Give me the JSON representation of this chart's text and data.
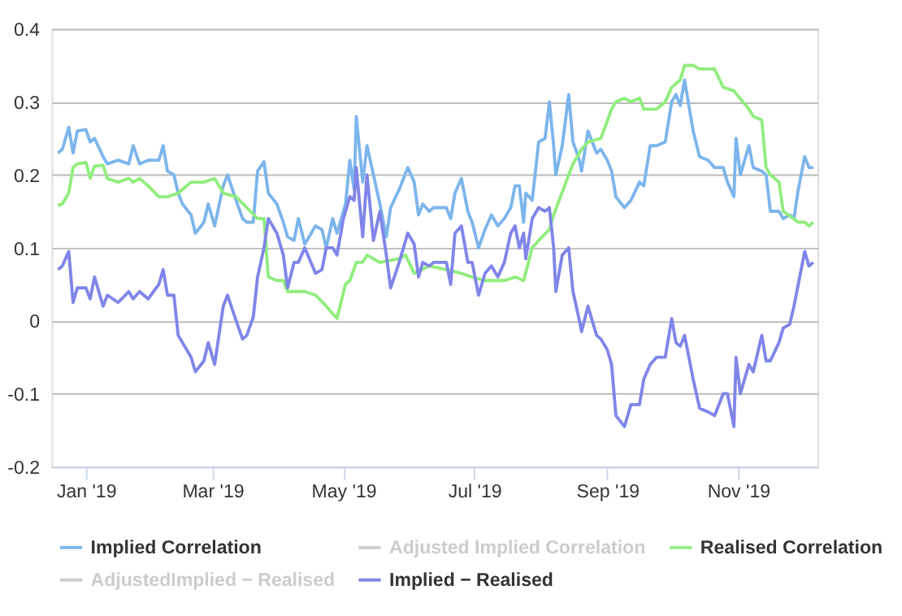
{
  "chart_data": {
    "type": "line",
    "xlim": [
      "2018-12-16",
      "2019-12-08"
    ],
    "xticks": [
      {
        "value": "2019-01-01",
        "label": "Jan '19"
      },
      {
        "value": "2019-03-01",
        "label": "Mar '19"
      },
      {
        "value": "2019-05-01",
        "label": "May '19"
      },
      {
        "value": "2019-07-01",
        "label": "Jul '19"
      },
      {
        "value": "2019-09-01",
        "label": "Sep '19"
      },
      {
        "value": "2019-11-01",
        "label": "Nov '19"
      }
    ],
    "ylim": [
      -0.2,
      0.4
    ],
    "yticks": [
      -0.2,
      -0.1,
      0,
      0.1,
      0.2,
      0.3,
      0.4
    ],
    "grid": "y",
    "legend": "bottom",
    "marker": "none",
    "line_style": "solid",
    "series": [
      {
        "name": "Implied Correlation",
        "color": "#7cb5ec",
        "x": [
          "2018-12-19",
          "2018-12-21",
          "2018-12-24",
          "2018-12-26",
          "2018-12-28",
          "2019-01-01",
          "2019-01-03",
          "2019-01-05",
          "2019-01-09",
          "2019-01-11",
          "2019-01-16",
          "2019-01-21",
          "2019-01-23",
          "2019-01-26",
          "2019-01-30",
          "2019-02-04",
          "2019-02-06",
          "2019-02-08",
          "2019-02-11",
          "2019-02-13",
          "2019-02-15",
          "2019-02-19",
          "2019-02-21",
          "2019-02-25",
          "2019-02-27",
          "2019-03-02",
          "2019-03-06",
          "2019-03-08",
          "2019-03-12",
          "2019-03-15",
          "2019-03-17",
          "2019-03-20",
          "2019-03-22",
          "2019-03-25",
          "2019-03-27",
          "2019-03-31",
          "2019-04-03",
          "2019-04-05",
          "2019-04-08",
          "2019-04-10",
          "2019-04-13",
          "2019-04-18",
          "2019-04-21",
          "2019-04-23",
          "2019-04-26",
          "2019-04-28",
          "2019-05-01",
          "2019-05-02",
          "2019-05-04",
          "2019-05-06",
          "2019-05-07",
          "2019-05-10",
          "2019-05-12",
          "2019-05-15",
          "2019-05-18",
          "2019-05-21",
          "2019-05-23",
          "2019-05-27",
          "2019-05-31",
          "2019-06-03",
          "2019-06-05",
          "2019-06-07",
          "2019-06-10",
          "2019-06-12",
          "2019-06-18",
          "2019-06-20",
          "2019-06-22",
          "2019-06-25",
          "2019-06-28",
          "2019-06-30",
          "2019-07-03",
          "2019-07-06",
          "2019-07-09",
          "2019-07-12",
          "2019-07-15",
          "2019-07-18",
          "2019-07-20",
          "2019-07-22",
          "2019-07-24",
          "2019-07-25",
          "2019-07-28",
          "2019-07-31",
          "2019-08-03",
          "2019-08-05",
          "2019-08-07",
          "2019-08-08",
          "2019-08-11",
          "2019-08-14",
          "2019-08-16",
          "2019-08-19",
          "2019-08-20",
          "2019-08-23",
          "2019-08-27",
          "2019-08-29",
          "2019-09-01",
          "2019-09-03",
          "2019-09-05",
          "2019-09-09",
          "2019-09-12",
          "2019-09-16",
          "2019-09-18",
          "2019-09-21",
          "2019-09-24",
          "2019-09-28",
          "2019-10-01",
          "2019-10-03",
          "2019-10-05",
          "2019-10-07",
          "2019-10-11",
          "2019-10-14",
          "2019-10-18",
          "2019-10-21",
          "2019-10-25",
          "2019-10-27",
          "2019-10-30",
          "2019-10-31",
          "2019-11-02",
          "2019-11-06",
          "2019-11-08",
          "2019-11-12",
          "2019-11-14",
          "2019-11-16",
          "2019-11-20",
          "2019-11-22",
          "2019-11-25",
          "2019-11-27",
          "2019-11-29",
          "2019-12-02",
          "2019-12-04",
          "2019-12-06"
        ],
        "values": [
          0.23,
          0.235,
          0.265,
          0.23,
          0.26,
          0.262,
          0.245,
          0.25,
          0.225,
          0.215,
          0.22,
          0.215,
          0.24,
          0.215,
          0.22,
          0.22,
          0.24,
          0.205,
          0.2,
          0.175,
          0.16,
          0.145,
          0.12,
          0.135,
          0.16,
          0.13,
          0.185,
          0.2,
          0.165,
          0.14,
          0.135,
          0.135,
          0.205,
          0.218,
          0.175,
          0.16,
          0.135,
          0.115,
          0.11,
          0.14,
          0.105,
          0.13,
          0.125,
          0.1,
          0.14,
          0.12,
          0.15,
          0.16,
          0.22,
          0.18,
          0.28,
          0.19,
          0.24,
          0.2,
          0.16,
          0.115,
          0.155,
          0.18,
          0.21,
          0.19,
          0.145,
          0.16,
          0.15,
          0.155,
          0.155,
          0.14,
          0.175,
          0.195,
          0.15,
          0.135,
          0.1,
          0.125,
          0.145,
          0.13,
          0.14,
          0.155,
          0.185,
          0.185,
          0.135,
          0.175,
          0.165,
          0.245,
          0.25,
          0.3,
          0.24,
          0.2,
          0.24,
          0.31,
          0.245,
          0.22,
          0.205,
          0.26,
          0.23,
          0.235,
          0.22,
          0.205,
          0.17,
          0.155,
          0.165,
          0.19,
          0.185,
          0.24,
          0.24,
          0.245,
          0.3,
          0.31,
          0.295,
          0.33,
          0.26,
          0.225,
          0.22,
          0.21,
          0.21,
          0.19,
          0.17,
          0.25,
          0.2,
          0.24,
          0.21,
          0.205,
          0.2,
          0.15,
          0.15,
          0.14,
          0.145,
          0.14,
          0.18,
          0.225,
          0.21,
          0.21
        ]
      },
      {
        "name": "Adjusted Implied Correlation",
        "color": "#cccccc"
      },
      {
        "name": "Realised Correlation",
        "color": "#90ed7d",
        "x": [
          "2018-12-19",
          "2018-12-21",
          "2018-12-24",
          "2018-12-26",
          "2018-12-28",
          "2019-01-01",
          "2019-01-03",
          "2019-01-05",
          "2019-01-09",
          "2019-01-11",
          "2019-01-16",
          "2019-01-21",
          "2019-01-23",
          "2019-01-26",
          "2019-01-30",
          "2019-02-04",
          "2019-02-08",
          "2019-02-13",
          "2019-02-19",
          "2019-02-25",
          "2019-03-02",
          "2019-03-06",
          "2019-03-12",
          "2019-03-17",
          "2019-03-22",
          "2019-03-25",
          "2019-03-27",
          "2019-03-31",
          "2019-04-03",
          "2019-04-05",
          "2019-04-13",
          "2019-04-18",
          "2019-04-23",
          "2019-04-28",
          "2019-05-02",
          "2019-05-04",
          "2019-05-07",
          "2019-05-10",
          "2019-05-12",
          "2019-05-18",
          "2019-05-27",
          "2019-05-30",
          "2019-06-03",
          "2019-06-10",
          "2019-06-18",
          "2019-06-25",
          "2019-06-30",
          "2019-07-06",
          "2019-07-15",
          "2019-07-20",
          "2019-07-24",
          "2019-07-28",
          "2019-07-31",
          "2019-08-05",
          "2019-08-07",
          "2019-08-14",
          "2019-08-16",
          "2019-08-20",
          "2019-08-23",
          "2019-08-29",
          "2019-09-03",
          "2019-09-05",
          "2019-09-09",
          "2019-09-12",
          "2019-09-16",
          "2019-09-18",
          "2019-09-24",
          "2019-09-28",
          "2019-10-01",
          "2019-10-05",
          "2019-10-07",
          "2019-10-11",
          "2019-10-14",
          "2019-10-21",
          "2019-10-25",
          "2019-10-30",
          "2019-11-06",
          "2019-11-08",
          "2019-11-12",
          "2019-11-14",
          "2019-11-16",
          "2019-11-20",
          "2019-11-22",
          "2019-11-29",
          "2019-12-02",
          "2019-12-04",
          "2019-12-06"
        ],
        "values": [
          0.158,
          0.16,
          0.175,
          0.21,
          0.215,
          0.217,
          0.195,
          0.212,
          0.213,
          0.195,
          0.19,
          0.195,
          0.19,
          0.195,
          0.185,
          0.17,
          0.17,
          0.175,
          0.19,
          0.19,
          0.195,
          0.175,
          0.17,
          0.155,
          0.14,
          0.14,
          0.06,
          0.055,
          0.055,
          0.04,
          0.04,
          0.035,
          0.02,
          0.003,
          0.05,
          0.055,
          0.08,
          0.08,
          0.09,
          0.08,
          0.085,
          0.09,
          0.065,
          0.075,
          0.07,
          0.065,
          0.06,
          0.055,
          0.055,
          0.06,
          0.055,
          0.1,
          0.11,
          0.125,
          0.145,
          0.2,
          0.215,
          0.235,
          0.245,
          0.25,
          0.29,
          0.3,
          0.305,
          0.3,
          0.305,
          0.29,
          0.29,
          0.3,
          0.32,
          0.33,
          0.35,
          0.35,
          0.345,
          0.345,
          0.32,
          0.315,
          0.29,
          0.28,
          0.275,
          0.21,
          0.2,
          0.19,
          0.15,
          0.135,
          0.135,
          0.13,
          0.135
        ]
      },
      {
        "name": "AdjustedImplied − Realised",
        "color": "#cccccc"
      },
      {
        "name": "Implied − Realised",
        "color": "#8085e9",
        "x": [
          "2018-12-19",
          "2018-12-21",
          "2018-12-24",
          "2018-12-26",
          "2018-12-28",
          "2019-01-01",
          "2019-01-03",
          "2019-01-05",
          "2019-01-09",
          "2019-01-11",
          "2019-01-16",
          "2019-01-21",
          "2019-01-23",
          "2019-01-26",
          "2019-01-30",
          "2019-02-04",
          "2019-02-06",
          "2019-02-08",
          "2019-02-11",
          "2019-02-13",
          "2019-02-15",
          "2019-02-19",
          "2019-02-21",
          "2019-02-25",
          "2019-02-27",
          "2019-03-02",
          "2019-03-06",
          "2019-03-08",
          "2019-03-12",
          "2019-03-15",
          "2019-03-17",
          "2019-03-20",
          "2019-03-22",
          "2019-03-25",
          "2019-03-27",
          "2019-03-31",
          "2019-04-03",
          "2019-04-05",
          "2019-04-08",
          "2019-04-10",
          "2019-04-13",
          "2019-04-18",
          "2019-04-21",
          "2019-04-23",
          "2019-04-26",
          "2019-04-28",
          "2019-05-01",
          "2019-05-02",
          "2019-05-04",
          "2019-05-06",
          "2019-05-07",
          "2019-05-10",
          "2019-05-12",
          "2019-05-15",
          "2019-05-18",
          "2019-05-21",
          "2019-05-23",
          "2019-05-27",
          "2019-05-31",
          "2019-06-03",
          "2019-06-05",
          "2019-06-07",
          "2019-06-10",
          "2019-06-12",
          "2019-06-18",
          "2019-06-20",
          "2019-06-22",
          "2019-06-25",
          "2019-06-28",
          "2019-06-30",
          "2019-07-03",
          "2019-07-06",
          "2019-07-09",
          "2019-07-12",
          "2019-07-15",
          "2019-07-18",
          "2019-07-20",
          "2019-07-22",
          "2019-07-24",
          "2019-07-25",
          "2019-07-28",
          "2019-07-31",
          "2019-08-03",
          "2019-08-05",
          "2019-08-07",
          "2019-08-08",
          "2019-08-11",
          "2019-08-14",
          "2019-08-16",
          "2019-08-19",
          "2019-08-20",
          "2019-08-23",
          "2019-08-27",
          "2019-08-29",
          "2019-09-01",
          "2019-09-03",
          "2019-09-05",
          "2019-09-09",
          "2019-09-12",
          "2019-09-16",
          "2019-09-18",
          "2019-09-21",
          "2019-09-24",
          "2019-09-28",
          "2019-10-01",
          "2019-10-03",
          "2019-10-05",
          "2019-10-07",
          "2019-10-11",
          "2019-10-14",
          "2019-10-18",
          "2019-10-21",
          "2019-10-25",
          "2019-10-27",
          "2019-10-30",
          "2019-10-31",
          "2019-11-02",
          "2019-11-06",
          "2019-11-08",
          "2019-11-12",
          "2019-11-14",
          "2019-11-16",
          "2019-11-20",
          "2019-11-22",
          "2019-11-25",
          "2019-11-27",
          "2019-11-29",
          "2019-12-02",
          "2019-12-04",
          "2019-12-06"
        ],
        "values": [
          0.07,
          0.075,
          0.095,
          0.025,
          0.045,
          0.045,
          0.03,
          0.06,
          0.02,
          0.035,
          0.025,
          0.04,
          0.03,
          0.04,
          0.03,
          0.05,
          0.07,
          0.035,
          0.035,
          -0.02,
          -0.03,
          -0.05,
          -0.07,
          -0.055,
          -0.03,
          -0.06,
          0.02,
          0.035,
          0.0,
          -0.025,
          -0.02,
          0.005,
          0.06,
          0.1,
          0.14,
          0.12,
          0.09,
          0.045,
          0.08,
          0.08,
          0.1,
          0.065,
          0.07,
          0.1,
          0.1,
          0.09,
          0.14,
          0.15,
          0.17,
          0.165,
          0.21,
          0.115,
          0.2,
          0.11,
          0.15,
          0.09,
          0.045,
          0.08,
          0.12,
          0.105,
          0.06,
          0.08,
          0.075,
          0.08,
          0.08,
          0.05,
          0.12,
          0.13,
          0.08,
          0.08,
          0.035,
          0.065,
          0.075,
          0.06,
          0.08,
          0.12,
          0.13,
          0.1,
          0.12,
          0.085,
          0.14,
          0.155,
          0.15,
          0.155,
          0.1,
          0.04,
          0.09,
          0.1,
          0.04,
          0.0,
          -0.015,
          0.02,
          -0.02,
          -0.025,
          -0.04,
          -0.06,
          -0.13,
          -0.145,
          -0.115,
          -0.115,
          -0.08,
          -0.06,
          -0.05,
          -0.05,
          0.003,
          -0.03,
          -0.035,
          -0.02,
          -0.08,
          -0.12,
          -0.125,
          -0.13,
          -0.1,
          -0.1,
          -0.145,
          -0.05,
          -0.1,
          -0.06,
          -0.07,
          -0.02,
          -0.055,
          -0.055,
          -0.03,
          -0.01,
          -0.005,
          0.02,
          0.05,
          0.095,
          0.075,
          0.08
        ]
      }
    ]
  }
}
